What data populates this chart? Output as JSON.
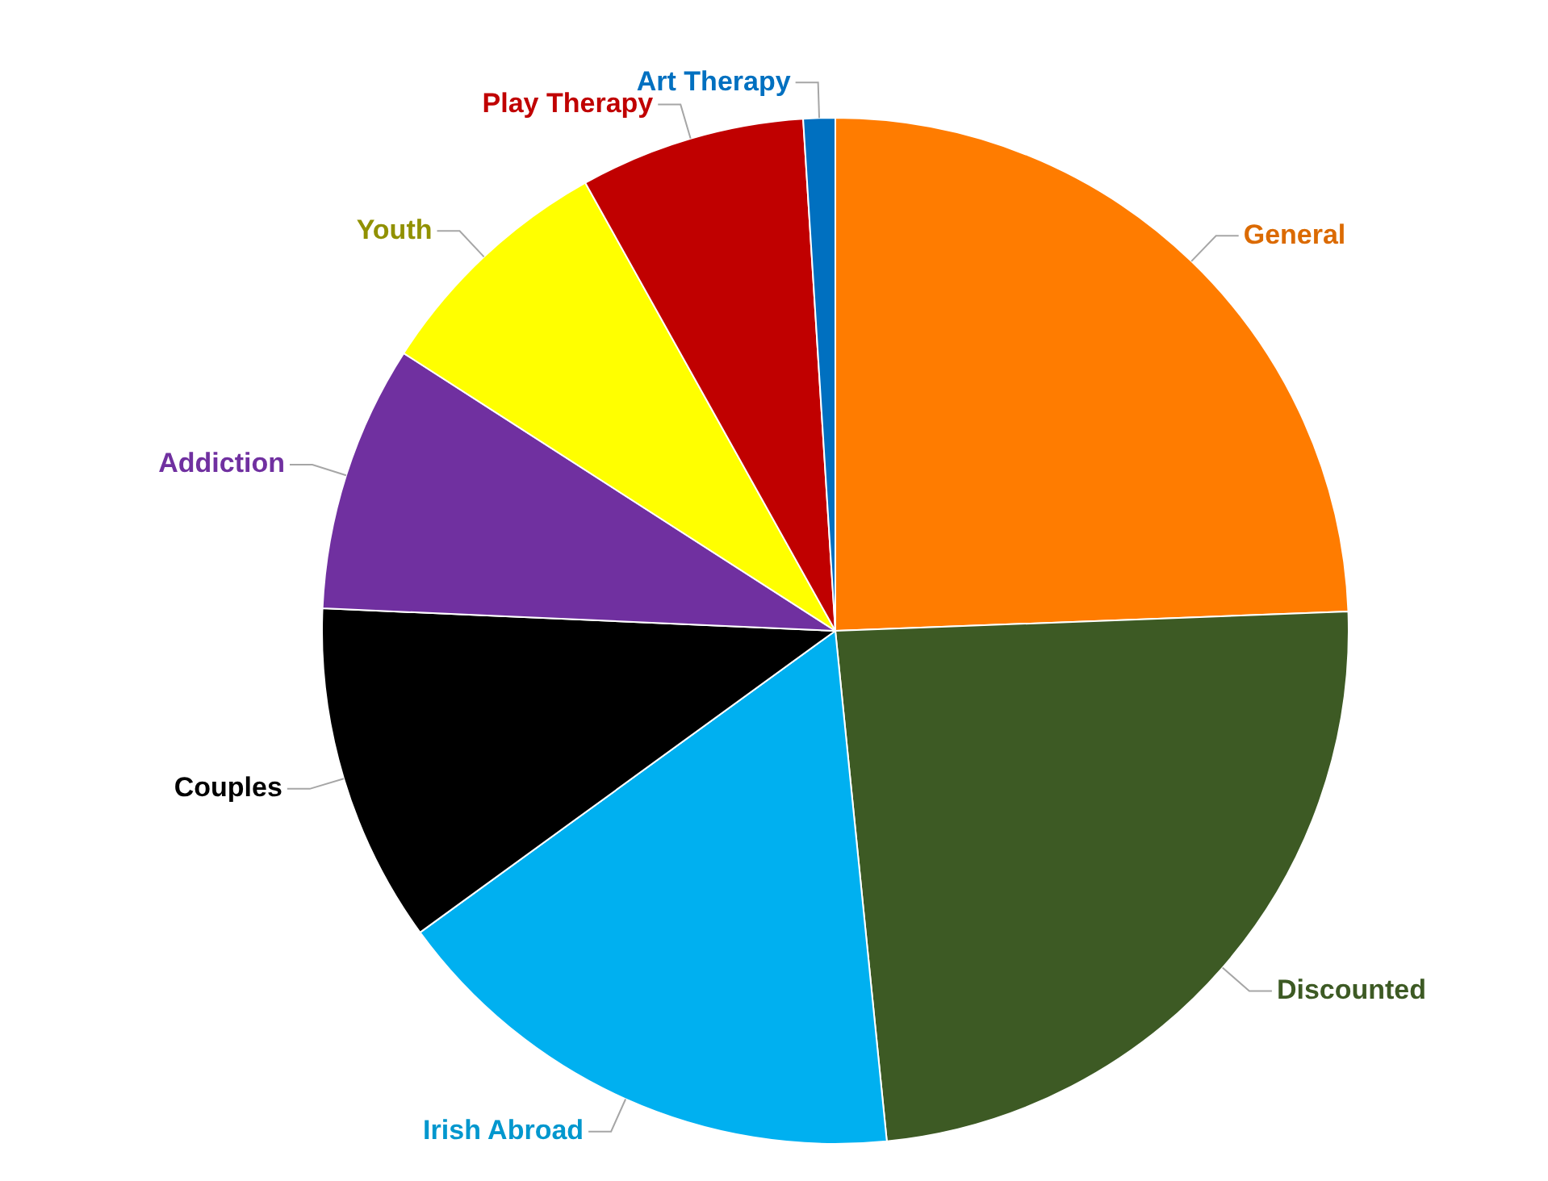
{
  "chart_data": {
    "type": "pie",
    "categories": [
      "General",
      "Discounted",
      "Irish Abroad",
      "Couples",
      "Addiction",
      "Youth",
      "Play Therapy",
      "Art Therapy"
    ],
    "values": [
      24.4,
      24,
      16.6,
      10.7,
      8.4,
      7.8,
      7.1,
      1
    ],
    "colors": [
      "#ff7c00",
      "#3d5a24",
      "#00b0f0",
      "#000000",
      "#7030a0",
      "#ffff00",
      "#c00000",
      "#0070c0"
    ],
    "legend": false
  }
}
